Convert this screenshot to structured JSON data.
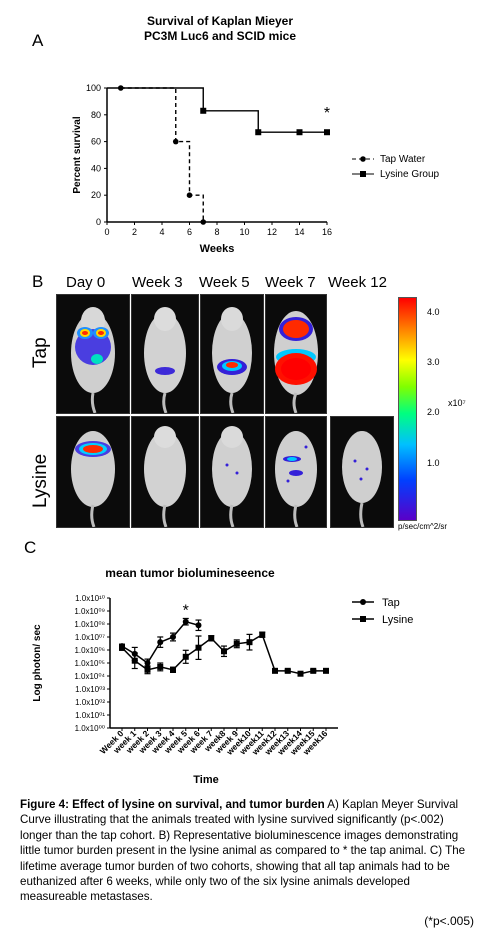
{
  "panelA": {
    "letter": "A",
    "title_line1": "Survival of Kaplan Mieyer",
    "title_line2": "PC3M Luc6 and SCID mice",
    "asterisk": "*"
  },
  "panelB": {
    "letter": "B",
    "columns": [
      "Day 0",
      "Week 3",
      "Week 5",
      "Week 7",
      "Week 12"
    ],
    "rows": [
      "Tap",
      "Lysine"
    ],
    "scale_ticks": [
      "4.0",
      "3.0",
      "2.0",
      "1.0"
    ],
    "scale_exponent": "x10⁷",
    "scale_unit": "p/sec/cm^2/sr"
  },
  "panelC": {
    "letter": "C",
    "asterisk": "*"
  },
  "caption": {
    "bold": "Figure 4: Effect of lysine on survival, and tumor burden",
    "text": " A) Kaplan Meyer Survival Curve illustrating that the animals treated with lysine survived significantly (p<.002) longer than the tap cohort. B) Representative bioluminescence images demonstrating little tumor burden present in the lysine animal as compared to * the tap animal. C) The lifetime average tumor burden of two cohorts, showing that all tap animals had to be euthanized after 6 weeks, while only two of the six lysine animals developed measureable metastases."
  },
  "note": "(*p<.005)",
  "colors": {
    "line": "#000000",
    "background": "#ffffff"
  },
  "chart_data": [
    {
      "type": "line",
      "title": "",
      "xlabel": "Weeks",
      "ylabel": "Percent survival",
      "xlim": [
        0,
        16
      ],
      "ylim": [
        0,
        100
      ],
      "xticks": [
        0,
        2,
        4,
        6,
        8,
        10,
        12,
        14,
        16
      ],
      "yticks": [
        0,
        20,
        40,
        60,
        80,
        100
      ],
      "step": true,
      "legend_position": "right",
      "series": [
        {
          "name": "Tap Water",
          "style": "dashed",
          "marker": "circle",
          "x": [
            1,
            5,
            6,
            7
          ],
          "y": [
            100,
            60,
            20,
            0
          ]
        },
        {
          "name": "Lysine Group",
          "style": "solid",
          "marker": "square",
          "x": [
            7,
            11,
            14,
            16
          ],
          "y": [
            83,
            67,
            67,
            67
          ]
        }
      ]
    },
    {
      "type": "line",
      "title": "mean tumor biolumineseence",
      "xlabel": "Time",
      "ylabel": "Log photon/ sec",
      "y_scale": "log",
      "ylim": [
        1,
        10000000000
      ],
      "yticks": [
        "1.0x10⁰⁰",
        "1.0x10⁰¹",
        "1.0x10⁰²",
        "1.0x10⁰³",
        "1.0x10⁰⁴",
        "1.0x10⁰⁵",
        "1.0x10⁰⁶",
        "1.0x10⁰⁷",
        "1.0x10⁰⁸",
        "1.0x10⁰⁹",
        "1.0x10¹⁰"
      ],
      "categories": [
        "Week 0",
        "week 1",
        "week 2",
        "week 3",
        "week 4",
        "week 5",
        "week 6",
        "week 7",
        "week8",
        "week 9",
        "week10",
        "week11",
        "week12",
        "week13",
        "week14",
        "week15",
        "week16"
      ],
      "legend_position": "right",
      "series": [
        {
          "name": "Tap",
          "marker": "circle",
          "values": [
            2000000,
            500000,
            100000,
            4000000,
            10000000,
            150000000,
            80000000,
            null,
            null,
            null,
            null,
            null,
            null,
            null,
            null,
            null,
            null
          ],
          "err": [
            0.15,
            0.5,
            0.3,
            0.4,
            0.3,
            0.25,
            0.4,
            null,
            null,
            null,
            null,
            null,
            null,
            null,
            null,
            null,
            null
          ]
        },
        {
          "name": "Lysine",
          "marker": "square",
          "values": [
            1500000,
            150000,
            30000,
            50000,
            30000,
            300000,
            1500000,
            8000000,
            800000,
            3000000,
            4000000,
            15000000,
            25000,
            25000,
            15000,
            25000,
            25000
          ],
          "err": [
            0.2,
            0.6,
            0.3,
            0.3,
            0.2,
            0.5,
            0.9,
            0.2,
            0.4,
            0.3,
            0.6,
            0.2,
            0.1,
            0.1,
            0.1,
            0.1,
            0.1
          ]
        }
      ]
    }
  ]
}
